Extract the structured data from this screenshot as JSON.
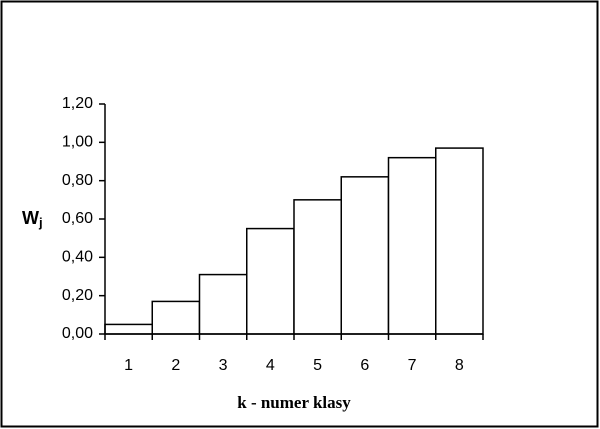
{
  "chart_data": {
    "type": "bar",
    "xlabel": "k - numer klasy",
    "ylabel": {
      "text": "W",
      "subscript": "j"
    },
    "categories": [
      "1",
      "2",
      "3",
      "4",
      "5",
      "6",
      "7",
      "8"
    ],
    "values": [
      0.05,
      0.17,
      0.31,
      0.55,
      0.7,
      0.82,
      0.92,
      0.97
    ],
    "color": "#ffffff",
    "edgecolor": "#000000",
    "ylim": [
      0,
      1.2
    ],
    "yticks": [
      {
        "value": 0,
        "label": "0,00"
      },
      {
        "value": 0.2,
        "label": "0,20"
      },
      {
        "value": 0.4,
        "label": "0,40"
      },
      {
        "value": 0.6,
        "label": "0,60"
      },
      {
        "value": 0.8,
        "label": "0,80"
      },
      {
        "value": 1.0,
        "label": "1,00"
      },
      {
        "value": 1.2,
        "label": "1,20"
      }
    ],
    "grid": false
  }
}
